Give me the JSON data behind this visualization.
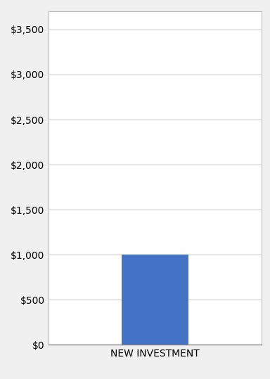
{
  "categories": [
    "NEW INVESTMENT"
  ],
  "values": [
    1000
  ],
  "bar_color": "#4472C4",
  "bar_width": 0.5,
  "ylim": [
    0,
    3700
  ],
  "yticks": [
    0,
    500,
    1000,
    1500,
    2000,
    2500,
    3000,
    3500
  ],
  "background_color": "#f0f0f0",
  "plot_area_color": "#ffffff",
  "grid_color": "#cccccc",
  "tick_label_fontsize": 10,
  "xlabel_fontsize": 10,
  "xlabel_fontweight": "normal",
  "spine_color": "#888888",
  "outer_spine_color": "#bbbbbb",
  "figsize": [
    3.84,
    5.39
  ],
  "dpi": 100
}
